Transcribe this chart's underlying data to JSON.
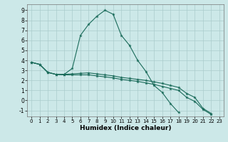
{
  "xlabel": "Humidex (Indice chaleur)",
  "bg_color": "#cce8e8",
  "line_color": "#1a6b5a",
  "grid_color": "#aacccc",
  "ylim": [
    -1.6,
    9.6
  ],
  "xlim": [
    -0.5,
    23.5
  ],
  "yticks": [
    -1,
    0,
    1,
    2,
    3,
    4,
    5,
    6,
    7,
    8,
    9
  ],
  "xticks": [
    0,
    1,
    2,
    3,
    4,
    5,
    6,
    7,
    8,
    9,
    10,
    11,
    12,
    13,
    14,
    15,
    16,
    17,
    18,
    19,
    20,
    21,
    22,
    23
  ],
  "line1_x": [
    0,
    1,
    2,
    3,
    4,
    5,
    6,
    7,
    8,
    9,
    10,
    11,
    12,
    13,
    14,
    15,
    16,
    17,
    18,
    19,
    20,
    21,
    22
  ],
  "line1_y": [
    3.8,
    3.6,
    2.8,
    2.6,
    2.6,
    3.2,
    6.5,
    7.6,
    8.4,
    9.0,
    8.6,
    6.5,
    5.5,
    4.0,
    2.9,
    1.5,
    0.8,
    -0.3,
    -1.2,
    null,
    null,
    null,
    null
  ],
  "line2_x": [
    0,
    1,
    2,
    3,
    4,
    5,
    6,
    7,
    8,
    9,
    10,
    11,
    12,
    13,
    14,
    15,
    16,
    17,
    18,
    19,
    20,
    21,
    22
  ],
  "line2_y": [
    3.8,
    3.6,
    2.8,
    2.6,
    2.6,
    2.65,
    2.7,
    2.75,
    2.65,
    2.55,
    2.45,
    2.3,
    2.2,
    2.1,
    2.0,
    1.85,
    1.7,
    1.5,
    1.3,
    0.7,
    0.3,
    -0.8,
    -1.3
  ],
  "line3_x": [
    0,
    1,
    2,
    3,
    4,
    5,
    6,
    7,
    8,
    9,
    10,
    11,
    12,
    13,
    14,
    15,
    16,
    17,
    18,
    19,
    20,
    21,
    22
  ],
  "line3_y": [
    3.8,
    3.6,
    2.8,
    2.6,
    2.55,
    2.55,
    2.55,
    2.55,
    2.45,
    2.35,
    2.25,
    2.1,
    2.0,
    1.9,
    1.75,
    1.6,
    1.4,
    1.2,
    1.0,
    0.3,
    -0.1,
    -0.9,
    -1.4
  ]
}
